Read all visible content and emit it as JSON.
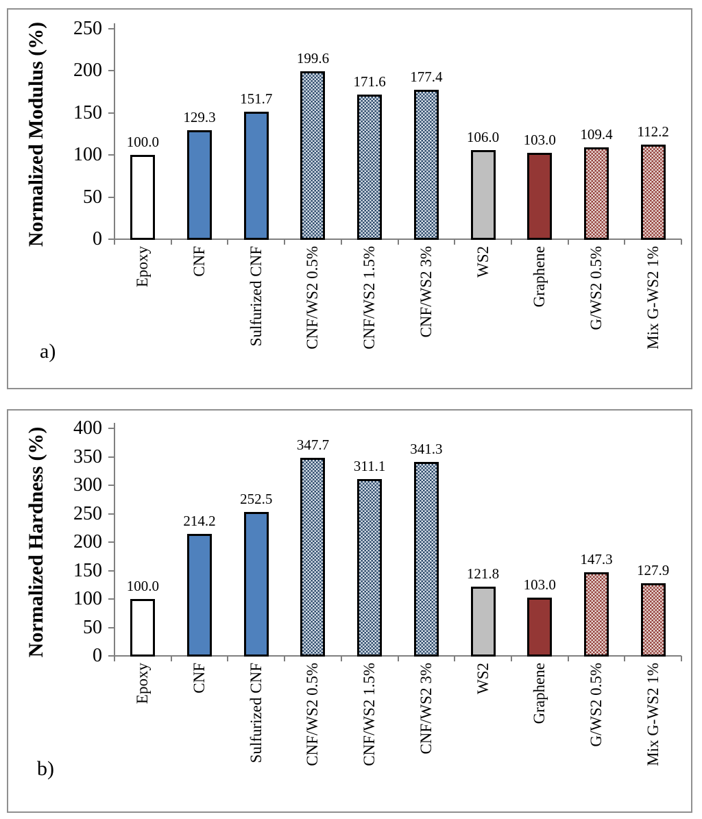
{
  "figure": {
    "panel_labels": [
      "a)",
      "b)"
    ],
    "bar_styles": [
      "white",
      "blue-solid",
      "blue-solid",
      "blue-pattern",
      "blue-pattern",
      "blue-pattern",
      "gray",
      "dark-red",
      "red-pattern",
      "red-pattern"
    ],
    "colors": {
      "solid_blue": "#4f81bd",
      "gray": "#bfbfbf",
      "dark_red": "#943735",
      "pattern_blue_fg": "#2d4a6b",
      "pattern_blue_bg": "#d9e1ea",
      "pattern_red_fg": "#95413c",
      "pattern_red_bg": "#e8d8d5",
      "axis": "#7f7f7f",
      "bar_border": "#000000",
      "panel_border": "#8f8f8f"
    }
  },
  "chart_data": [
    {
      "type": "bar",
      "panel": "a",
      "title": "",
      "xlabel": "",
      "ylabel": "Normalized Modulus (%)",
      "categories": [
        "Epoxy",
        "CNF",
        "Sulfurized CNF",
        "CNF/WS2 0.5%",
        "CNF/WS2 1.5%",
        "CNF/WS2 3%",
        "WS2",
        "Graphene",
        "G/WS2 0.5%",
        "Mix G-WS2 1%"
      ],
      "values": [
        100.0,
        129.3,
        151.7,
        199.6,
        171.6,
        177.4,
        106.0,
        103.0,
        109.4,
        112.2
      ],
      "value_labels": [
        "100.0",
        "129.3",
        "151.7",
        "199.6",
        "171.6",
        "177.4",
        "106.0",
        "103.0",
        "109.4",
        "112.2"
      ],
      "ylim": [
        0,
        250
      ],
      "ytick_step": 50,
      "ytick_labels": [
        "0",
        "50",
        "100",
        "150",
        "200",
        "250"
      ],
      "grid": false,
      "legend": null
    },
    {
      "type": "bar",
      "panel": "b",
      "title": "",
      "xlabel": "",
      "ylabel": "Normalized Hardness (%)",
      "categories": [
        "Epoxy",
        "CNF",
        "Sulfurized CNF",
        "CNF/WS2 0.5%",
        "CNF/WS2 1.5%",
        "CNF/WS2 3%",
        "WS2",
        "Graphene",
        "G/WS2 0.5%",
        "Mix G-WS2 1%"
      ],
      "values": [
        100.0,
        214.2,
        252.5,
        347.7,
        311.1,
        341.3,
        121.8,
        103.0,
        147.3,
        127.9
      ],
      "value_labels": [
        "100.0",
        "214.2",
        "252.5",
        "347.7",
        "311.1",
        "341.3",
        "121.8",
        "103.0",
        "147.3",
        "127.9"
      ],
      "ylim": [
        0,
        400
      ],
      "ytick_step": 50,
      "ytick_labels": [
        "0",
        "50",
        "100",
        "150",
        "200",
        "250",
        "300",
        "350",
        "400"
      ],
      "grid": false,
      "legend": null
    }
  ]
}
